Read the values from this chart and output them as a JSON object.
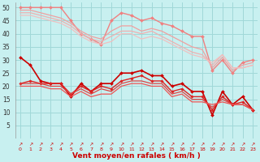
{
  "background_color": "#c8f0f0",
  "grid_color": "#a0d8d8",
  "xlabel": "Vent moyen/en rafales ( km/h )",
  "x": [
    0,
    1,
    2,
    3,
    4,
    5,
    6,
    7,
    8,
    9,
    10,
    11,
    12,
    13,
    14,
    15,
    16,
    17,
    18,
    19,
    20,
    21,
    22,
    23
  ],
  "xlim": [
    -0.5,
    23.5
  ],
  "ylim": [
    0,
    52
  ],
  "yticks": [
    5,
    10,
    15,
    20,
    25,
    30,
    35,
    40,
    45,
    50
  ],
  "series": [
    {
      "y": [
        50,
        50,
        50,
        50,
        50,
        45,
        40,
        38,
        36,
        45,
        48,
        47,
        45,
        46,
        44,
        43,
        41,
        39,
        39,
        26,
        30,
        25,
        29,
        30
      ],
      "color": "#f08080",
      "linewidth": 1.0,
      "marker": "D",
      "markersize": 2.0
    },
    {
      "y": [
        49,
        49,
        48,
        47,
        46,
        44,
        41,
        39,
        38,
        41,
        43,
        43,
        41,
        42,
        41,
        39,
        37,
        35,
        34,
        27,
        31,
        26,
        28,
        29
      ],
      "color": "#f0a0a0",
      "linewidth": 0.9,
      "marker": null,
      "markersize": 0
    },
    {
      "y": [
        48,
        48,
        47,
        46,
        45,
        43,
        40,
        38,
        37,
        39,
        41,
        41,
        40,
        41,
        39,
        37,
        35,
        33,
        32,
        28,
        32,
        27,
        27,
        28
      ],
      "color": "#f0b0b0",
      "linewidth": 0.9,
      "marker": null,
      "markersize": 0
    },
    {
      "y": [
        47,
        47,
        46,
        45,
        44,
        42,
        39,
        37,
        36,
        37,
        40,
        40,
        38,
        39,
        38,
        36,
        34,
        32,
        31,
        29,
        32,
        27,
        27,
        28
      ],
      "color": "#f0c0c0",
      "linewidth": 0.9,
      "marker": null,
      "markersize": 0
    },
    {
      "y": [
        31,
        28,
        22,
        21,
        21,
        16,
        21,
        18,
        21,
        21,
        25,
        25,
        26,
        24,
        24,
        20,
        21,
        18,
        18,
        9,
        18,
        13,
        16,
        11
      ],
      "color": "#cc0000",
      "linewidth": 1.2,
      "marker": "D",
      "markersize": 2.0
    },
    {
      "y": [
        21,
        22,
        21,
        21,
        21,
        17,
        20,
        18,
        20,
        19,
        22,
        23,
        24,
        22,
        22,
        18,
        19,
        16,
        16,
        11,
        16,
        13,
        14,
        11
      ],
      "color": "#dd2222",
      "linewidth": 1.0,
      "marker": "D",
      "markersize": 1.8
    },
    {
      "y": [
        21,
        21,
        21,
        20,
        20,
        17,
        19,
        17,
        19,
        18,
        21,
        22,
        22,
        21,
        21,
        17,
        18,
        15,
        15,
        12,
        15,
        13,
        13,
        11
      ],
      "color": "#dd4444",
      "linewidth": 0.9,
      "marker": null,
      "markersize": 0
    },
    {
      "y": [
        20,
        20,
        20,
        19,
        19,
        16,
        18,
        16,
        17,
        17,
        20,
        21,
        21,
        20,
        20,
        16,
        17,
        14,
        14,
        13,
        14,
        13,
        13,
        11
      ],
      "color": "#ee5555",
      "linewidth": 0.9,
      "marker": null,
      "markersize": 0
    }
  ],
  "arrow_symbol": "↗",
  "xtick_fontsize": 4.5,
  "ytick_fontsize": 5.5,
  "xlabel_fontsize": 6.5,
  "xlabel_color": "#cc0000",
  "xtick_color": "#cc0000",
  "ytick_color": "#333333"
}
